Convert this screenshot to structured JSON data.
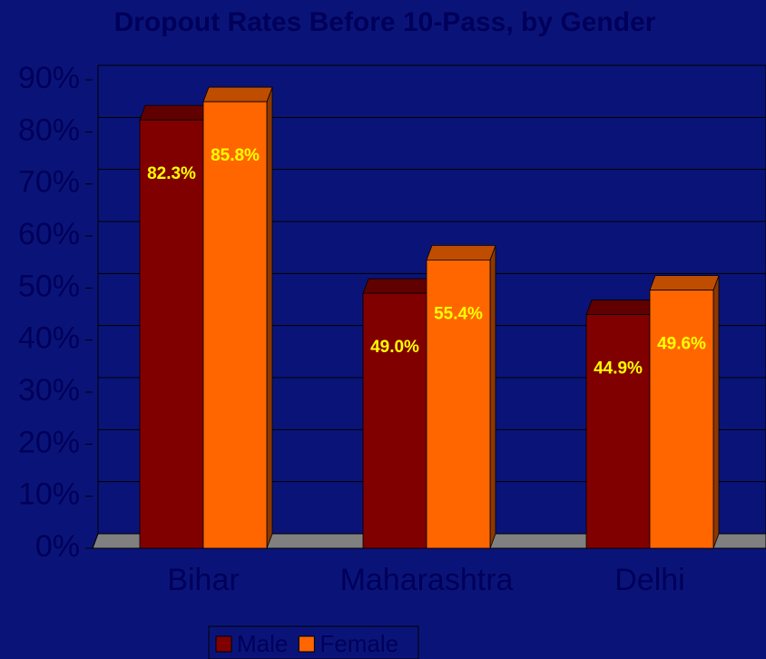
{
  "chart_data": {
    "type": "bar3d",
    "title": "Dropout Rates Before 10-Pass, by Gender",
    "categories": [
      "Bihar",
      "Maharashtra",
      "Delhi"
    ],
    "series": [
      {
        "name": "Male",
        "color": "#800000",
        "values": [
          82.3,
          49.0,
          44.9
        ],
        "value_labels": [
          "82.3%",
          "49.0%",
          "44.9%"
        ]
      },
      {
        "name": "Female",
        "color": "#ff6600",
        "values": [
          85.8,
          55.4,
          49.6
        ],
        "value_labels": [
          "85.8%",
          "55.4%",
          "49.6%"
        ]
      }
    ],
    "ylim": [
      0,
      90
    ],
    "yticks": [
      {
        "value": 0,
        "label": "0%"
      },
      {
        "value": 10,
        "label": "10%"
      },
      {
        "value": 20,
        "label": "20%"
      },
      {
        "value": 30,
        "label": "30%"
      },
      {
        "value": 40,
        "label": "40%"
      },
      {
        "value": 50,
        "label": "50%"
      },
      {
        "value": 60,
        "label": "60%"
      },
      {
        "value": 70,
        "label": "70%"
      },
      {
        "value": 80,
        "label": "80%"
      },
      {
        "value": 90,
        "label": "90%"
      }
    ],
    "grid": true,
    "legend": "bottom"
  }
}
